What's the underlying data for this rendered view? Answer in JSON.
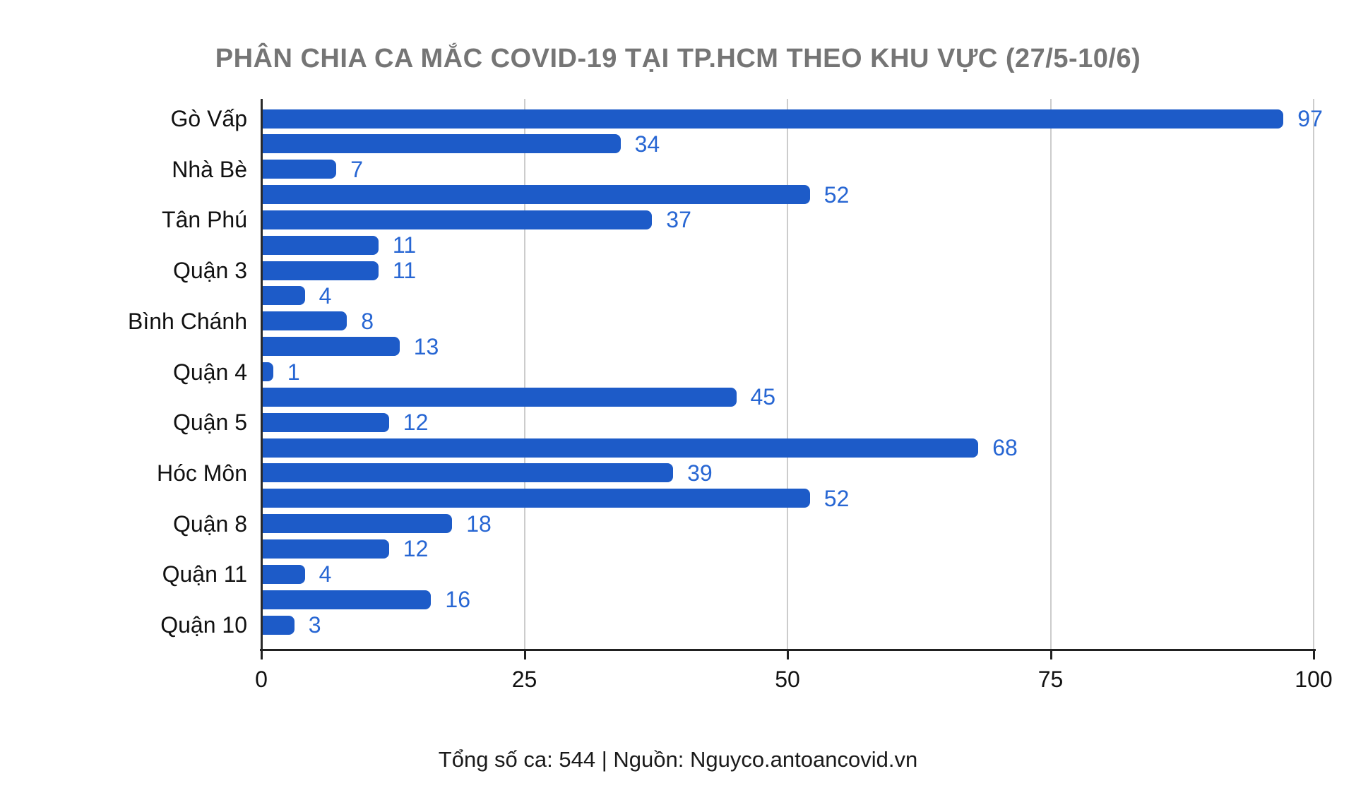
{
  "chart_data": {
    "type": "bar",
    "orientation": "horizontal",
    "title": "PHÂN CHIA CA MẮC COVID-19 TẠI TP.HCM THEO KHU VỰC (27/5-10/6)",
    "footer": "Tổng số ca: 544 | Nguồn: Nguyco.antoancovid.vn",
    "total_cases": 544,
    "x_axis": {
      "range": [
        0,
        100
      ],
      "ticks": [
        0,
        25,
        50,
        75,
        100
      ],
      "grid": true
    },
    "bars": [
      {
        "label": "Gò Vấp",
        "value": 97
      },
      {
        "label": "",
        "value": 34
      },
      {
        "label": "Nhà Bè",
        "value": 7
      },
      {
        "label": "",
        "value": 52
      },
      {
        "label": "Tân Phú",
        "value": 37
      },
      {
        "label": "",
        "value": 11
      },
      {
        "label": "Quận 3",
        "value": 11
      },
      {
        "label": "",
        "value": 4
      },
      {
        "label": "Bình Chánh",
        "value": 8
      },
      {
        "label": "",
        "value": 13
      },
      {
        "label": "Quận 4",
        "value": 1
      },
      {
        "label": "",
        "value": 45
      },
      {
        "label": "Quận 5",
        "value": 12
      },
      {
        "label": "",
        "value": 68
      },
      {
        "label": "Hóc Môn",
        "value": 39
      },
      {
        "label": "",
        "value": 52
      },
      {
        "label": "Quận 8",
        "value": 18
      },
      {
        "label": "",
        "value": 12
      },
      {
        "label": "Quận 11",
        "value": 4
      },
      {
        "label": "",
        "value": 16
      },
      {
        "label": "Quận 10",
        "value": 3
      }
    ],
    "colors": {
      "bar": "#1d5bc8",
      "value_label": "#2766d3",
      "title": "#757575",
      "axis_text": "#111111",
      "gridline": "#cccccc",
      "axis_line": "#2a2a2a"
    }
  }
}
